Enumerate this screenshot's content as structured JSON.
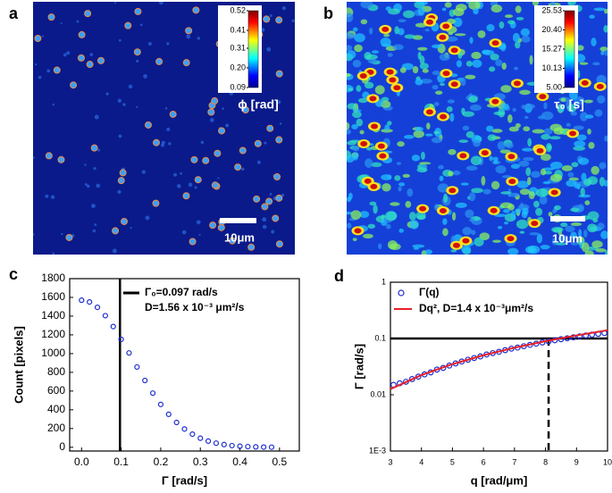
{
  "chart_data": [
    {
      "type": "image",
      "panel": "a",
      "colorbar_label": "ϕ [rad]",
      "scale_bar": "10μm",
      "clim": [
        0.09,
        0.52
      ],
      "cticks": [
        0.09,
        {
          "value": 0.2,
          "label": "0.20"
        },
        0.31,
        0.41,
        0.52
      ]
    },
    {
      "type": "image",
      "panel": "b",
      "colorbar_label": "τ₀ [s]",
      "scale_bar": "10μm",
      "clim": [
        5,
        25.53
      ],
      "cticks": [
        {
          "value": 5,
          "label": "5.00"
        },
        10.13,
        15.27,
        {
          "value": 20.4,
          "label": "20.40"
        },
        25.53
      ]
    },
    {
      "type": "scatter",
      "panel": "c",
      "x_label": "Γ [rad/s]",
      "y_label": "Count [pixels]",
      "annotations": [
        "Γ₀=0.097 rad/s",
        "D=1.56 x 10⁻³ μm²/s"
      ],
      "vline": 0.097,
      "xlim": [
        -0.03,
        0.55
      ],
      "xticks": [
        {
          "value": 0,
          "label": "0.0"
        },
        0.1,
        0.2,
        0.3,
        0.4,
        0.5
      ],
      "ylim": [
        -40,
        1800
      ],
      "yticks": [
        0,
        200,
        400,
        600,
        800,
        1000,
        1200,
        1400,
        1600,
        1800
      ],
      "series": [
        {
          "color": "#1f2fd0",
          "x": [
            0,
            0.02,
            0.04,
            0.06,
            0.08,
            0.1,
            0.12,
            0.14,
            0.16,
            0.18,
            0.2,
            0.22,
            0.24,
            0.26,
            0.28,
            0.3,
            0.32,
            0.34,
            0.36,
            0.38,
            0.4,
            0.42,
            0.44,
            0.46,
            0.48
          ],
          "values": [
            1570,
            1551,
            1494,
            1405,
            1289,
            1152,
            1007,
            857,
            713,
            578,
            457,
            352,
            265,
            195,
            140,
            97,
            66,
            44,
            29,
            18,
            11,
            7,
            4,
            2,
            1
          ]
        }
      ]
    },
    {
      "type": "scatter",
      "panel": "d",
      "x_label": "q [rad/μm]",
      "y_label": "Γ [rad/s]",
      "log_y": true,
      "hline": 0.1,
      "vline": 8.1,
      "xlim": [
        3,
        10
      ],
      "xticks": [
        3,
        4,
        5,
        6,
        7,
        8,
        9,
        10
      ],
      "ylim": [
        0.001,
        1
      ],
      "yticks": [
        {
          "value": 0.001,
          "label": "1E-3"
        },
        0.01,
        0.1,
        1
      ],
      "series": [
        {
          "name": "Γ(q)",
          "color": "#1f2fd0",
          "style": "markers",
          "x": [
            3.1,
            3.3,
            3.5,
            3.7,
            3.9,
            4.1,
            4.3,
            4.5,
            4.7,
            4.9,
            5.1,
            5.3,
            5.5,
            5.7,
            5.9,
            6.1,
            6.3,
            6.5,
            6.7,
            6.9,
            7.1,
            7.3,
            7.5,
            7.7,
            7.9,
            8.1,
            8.3,
            8.5,
            8.7,
            8.9,
            9.1,
            9.3,
            9.5,
            9.7,
            9.9
          ],
          "values": [
            0.015,
            0.016,
            0.017,
            0.019,
            0.021,
            0.023,
            0.025,
            0.028,
            0.03,
            0.033,
            0.036,
            0.039,
            0.042,
            0.045,
            0.048,
            0.052,
            0.055,
            0.058,
            0.062,
            0.066,
            0.069,
            0.073,
            0.077,
            0.081,
            0.085,
            0.089,
            0.093,
            0.097,
            0.101,
            0.105,
            0.109,
            0.113,
            0.117,
            0.121,
            0.125
          ]
        },
        {
          "name": "Dq², D=1.4 x 10⁻³μm²/s",
          "color": "#e8202a",
          "style": "line",
          "x": [
            3,
            4,
            5,
            6,
            7,
            8,
            9,
            10
          ],
          "values": [
            0.0126,
            0.0224,
            0.035,
            0.0504,
            0.0686,
            0.0896,
            0.1134,
            0.14
          ]
        }
      ]
    }
  ]
}
